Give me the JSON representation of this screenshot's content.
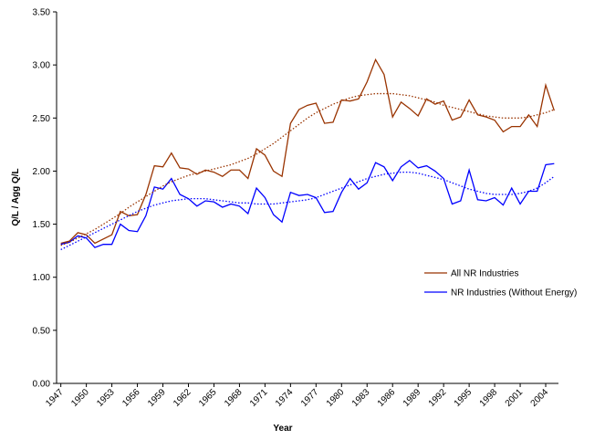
{
  "chart_data": {
    "type": "line",
    "x_label": "Year",
    "y_label": "Q/L / Agg Q/L",
    "x": [
      1947,
      1948,
      1949,
      1950,
      1951,
      1952,
      1953,
      1954,
      1955,
      1956,
      1957,
      1958,
      1959,
      1960,
      1961,
      1962,
      1963,
      1964,
      1965,
      1966,
      1967,
      1968,
      1969,
      1970,
      1971,
      1972,
      1973,
      1974,
      1975,
      1976,
      1977,
      1978,
      1979,
      1980,
      1981,
      1982,
      1983,
      1984,
      1985,
      1986,
      1987,
      1988,
      1989,
      1990,
      1991,
      1992,
      1993,
      1994,
      1995,
      1996,
      1997,
      1998,
      1999,
      2000,
      2001,
      2002,
      2003,
      2004,
      2005
    ],
    "xlim": [
      1946.5,
      2005.5
    ],
    "xticks": [
      1947,
      1950,
      1953,
      1956,
      1959,
      1962,
      1965,
      1968,
      1971,
      1974,
      1977,
      1980,
      1983,
      1986,
      1989,
      1992,
      1995,
      1998,
      2001,
      2004
    ],
    "ylim": [
      0,
      3.5
    ],
    "yticks": [
      {
        "value": 0,
        "label": "0.00"
      },
      {
        "value": 0.5,
        "label": "0.50"
      },
      {
        "value": 1,
        "label": "1.00"
      },
      {
        "value": 1.5,
        "label": "1.50"
      },
      {
        "value": 2,
        "label": "2.00"
      },
      {
        "value": 2.5,
        "label": "2.50"
      },
      {
        "value": 3,
        "label": "3.00"
      },
      {
        "value": 3.5,
        "label": "3.50"
      }
    ],
    "grid": false,
    "series": [
      {
        "name": "All NR Industries",
        "color": "#993300",
        "style": "solid",
        "values": [
          1.32,
          1.34,
          1.42,
          1.4,
          1.32,
          1.36,
          1.4,
          1.62,
          1.58,
          1.59,
          1.78,
          2.05,
          2.04,
          2.17,
          2.03,
          2.02,
          1.97,
          2.01,
          1.99,
          1.95,
          2.01,
          2.01,
          1.93,
          2.21,
          2.15,
          2.0,
          1.95,
          2.45,
          2.58,
          2.62,
          2.64,
          2.45,
          2.46,
          2.67,
          2.66,
          2.68,
          2.84,
          3.05,
          2.91,
          2.51,
          2.65,
          2.59,
          2.52,
          2.68,
          2.63,
          2.66,
          2.48,
          2.51,
          2.67,
          2.53,
          2.51,
          2.48,
          2.37,
          2.42,
          2.42,
          2.53,
          2.42,
          2.81,
          2.57
        ]
      },
      {
        "name": "NR Industries (Without Energy)",
        "color": "#0000ff",
        "style": "solid",
        "values": [
          1.31,
          1.33,
          1.39,
          1.37,
          1.28,
          1.31,
          1.31,
          1.5,
          1.44,
          1.43,
          1.58,
          1.85,
          1.83,
          1.93,
          1.78,
          1.74,
          1.67,
          1.72,
          1.71,
          1.66,
          1.69,
          1.67,
          1.6,
          1.84,
          1.75,
          1.59,
          1.52,
          1.8,
          1.77,
          1.78,
          1.75,
          1.61,
          1.62,
          1.8,
          1.93,
          1.83,
          1.89,
          2.08,
          2.04,
          1.91,
          2.04,
          2.1,
          2.03,
          2.05,
          2.0,
          1.93,
          1.69,
          1.72,
          2.01,
          1.73,
          1.72,
          1.75,
          1.68,
          1.84,
          1.69,
          1.81,
          1.81,
          2.06,
          2.07
        ]
      },
      {
        "color": "#993300",
        "style": "dotted",
        "values": [
          1.3,
          1.33,
          1.37,
          1.41,
          1.45,
          1.5,
          1.55,
          1.6,
          1.66,
          1.71,
          1.76,
          1.81,
          1.86,
          1.9,
          1.93,
          1.96,
          1.98,
          2.0,
          2.02,
          2.04,
          2.06,
          2.09,
          2.12,
          2.16,
          2.21,
          2.26,
          2.32,
          2.38,
          2.44,
          2.5,
          2.55,
          2.59,
          2.63,
          2.66,
          2.69,
          2.71,
          2.72,
          2.73,
          2.73,
          2.73,
          2.72,
          2.71,
          2.69,
          2.67,
          2.65,
          2.62,
          2.6,
          2.58,
          2.56,
          2.54,
          2.52,
          2.51,
          2.5,
          2.5,
          2.5,
          2.51,
          2.53,
          2.55,
          2.58
        ]
      },
      {
        "color": "#0000ff",
        "style": "dotted",
        "values": [
          1.26,
          1.3,
          1.34,
          1.38,
          1.42,
          1.46,
          1.5,
          1.54,
          1.58,
          1.62,
          1.65,
          1.68,
          1.7,
          1.72,
          1.73,
          1.74,
          1.74,
          1.74,
          1.73,
          1.72,
          1.71,
          1.7,
          1.7,
          1.69,
          1.69,
          1.69,
          1.7,
          1.71,
          1.72,
          1.73,
          1.75,
          1.78,
          1.81,
          1.84,
          1.87,
          1.9,
          1.93,
          1.95,
          1.97,
          1.98,
          1.99,
          1.99,
          1.98,
          1.96,
          1.94,
          1.92,
          1.89,
          1.86,
          1.83,
          1.81,
          1.79,
          1.78,
          1.78,
          1.78,
          1.79,
          1.81,
          1.84,
          1.89,
          1.95
        ]
      }
    ]
  }
}
